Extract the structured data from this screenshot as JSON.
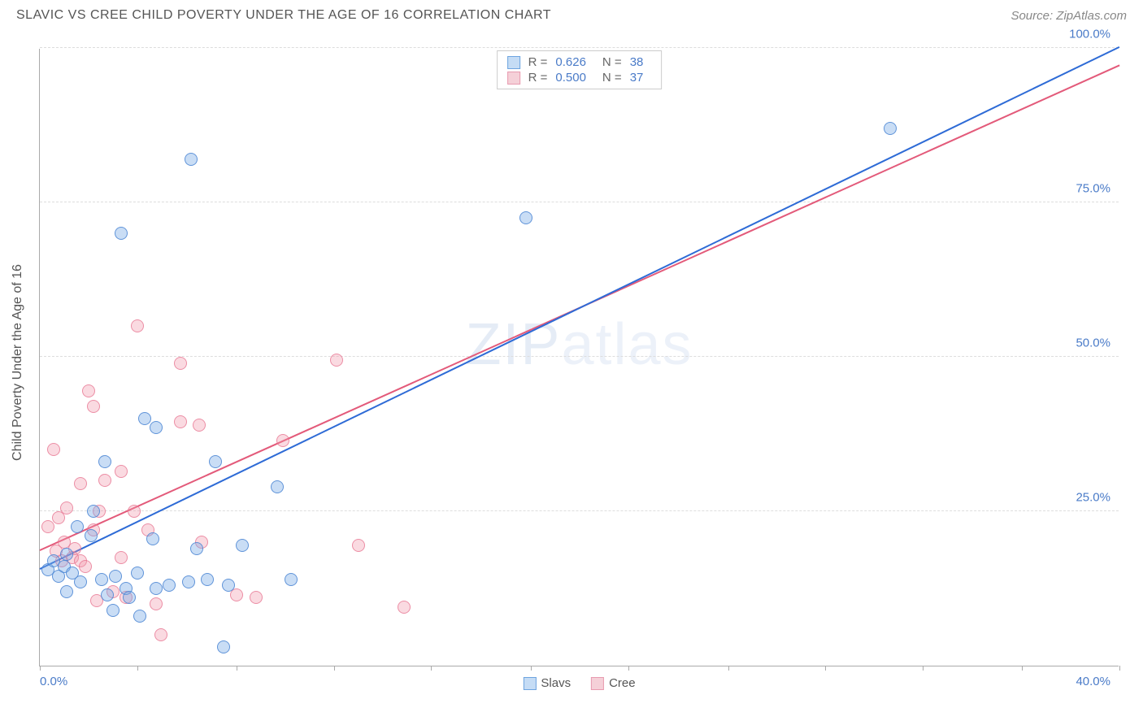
{
  "header": {
    "title": "SLAVIC VS CREE CHILD POVERTY UNDER THE AGE OF 16 CORRELATION CHART",
    "source": "Source: ZipAtlas.com"
  },
  "watermark": {
    "part1": "ZIP",
    "part2": "atlas"
  },
  "chart": {
    "type": "scatter",
    "y_axis_title": "Child Poverty Under the Age of 16",
    "xlim": [
      0,
      40
    ],
    "ylim": [
      0,
      100
    ],
    "x_label_start": "0.0%",
    "x_label_end": "40.0%",
    "y_labels": [
      {
        "value": 25,
        "text": "25.0%"
      },
      {
        "value": 50,
        "text": "50.0%"
      },
      {
        "value": 75,
        "text": "75.0%"
      },
      {
        "value": 100,
        "text": "100.0%"
      }
    ],
    "x_ticks": [
      0,
      3.6,
      7.3,
      10.9,
      14.5,
      18.2,
      21.8,
      25.5,
      29.1,
      32.7,
      36.4,
      40
    ],
    "grid_color": "#dddddd",
    "axis_color": "#aaaaaa",
    "background_color": "#ffffff",
    "series_a": {
      "name": "Slavs",
      "fill": "rgba(120, 170, 230, 0.4)",
      "stroke": "rgba(70, 130, 210, 0.8)",
      "swatch_fill": "#c5dcf5",
      "swatch_border": "#6ea4e0",
      "R": "0.626",
      "N": "38",
      "trend": {
        "x0": 0,
        "y0": 15.5,
        "x1": 40,
        "y1": 100,
        "color": "#2e6bd6",
        "dash_color": "#9ab8e8"
      },
      "points": [
        {
          "x": 0.3,
          "y": 15.5
        },
        {
          "x": 0.5,
          "y": 17.0
        },
        {
          "x": 0.7,
          "y": 14.5
        },
        {
          "x": 0.9,
          "y": 16.0
        },
        {
          "x": 1.0,
          "y": 18.0
        },
        {
          "x": 1.2,
          "y": 15.0
        },
        {
          "x": 1.4,
          "y": 22.5
        },
        {
          "x": 1.5,
          "y": 13.5
        },
        {
          "x": 1.9,
          "y": 21.0
        },
        {
          "x": 1.0,
          "y": 12.0
        },
        {
          "x": 2.3,
          "y": 14.0
        },
        {
          "x": 2.0,
          "y": 25.0
        },
        {
          "x": 2.5,
          "y": 11.5
        },
        {
          "x": 2.8,
          "y": 14.5
        },
        {
          "x": 3.0,
          "y": 70.0
        },
        {
          "x": 2.4,
          "y": 33.0
        },
        {
          "x": 3.2,
          "y": 12.5
        },
        {
          "x": 3.3,
          "y": 11.0
        },
        {
          "x": 3.6,
          "y": 15.0
        },
        {
          "x": 3.7,
          "y": 8.0
        },
        {
          "x": 3.9,
          "y": 40.0
        },
        {
          "x": 4.2,
          "y": 20.5
        },
        {
          "x": 4.3,
          "y": 12.5
        },
        {
          "x": 4.3,
          "y": 38.5
        },
        {
          "x": 4.8,
          "y": 13.0
        },
        {
          "x": 5.5,
          "y": 13.5
        },
        {
          "x": 5.8,
          "y": 19.0
        },
        {
          "x": 5.6,
          "y": 82.0
        },
        {
          "x": 6.2,
          "y": 14.0
        },
        {
          "x": 2.7,
          "y": 9.0
        },
        {
          "x": 6.5,
          "y": 33.0
        },
        {
          "x": 6.8,
          "y": 3.0
        },
        {
          "x": 7.0,
          "y": 13.0
        },
        {
          "x": 7.5,
          "y": 19.5
        },
        {
          "x": 8.8,
          "y": 29.0
        },
        {
          "x": 9.3,
          "y": 14.0
        },
        {
          "x": 18.0,
          "y": 72.5
        },
        {
          "x": 31.5,
          "y": 87.0
        }
      ]
    },
    "series_b": {
      "name": "Cree",
      "fill": "rgba(240, 150, 170, 0.35)",
      "stroke": "rgba(230, 110, 140, 0.7)",
      "swatch_fill": "#f5d0d8",
      "swatch_border": "#e89bb0",
      "R": "0.500",
      "N": "37",
      "trend": {
        "x0": 0,
        "y0": 18.5,
        "x1": 40,
        "y1": 97,
        "color": "#e35a7a",
        "dash_color": "#f5c0cc"
      },
      "points": [
        {
          "x": 0.3,
          "y": 22.5
        },
        {
          "x": 0.5,
          "y": 35.0
        },
        {
          "x": 0.6,
          "y": 18.5
        },
        {
          "x": 0.7,
          "y": 24.0
        },
        {
          "x": 0.8,
          "y": 17.0
        },
        {
          "x": 0.9,
          "y": 20.0
        },
        {
          "x": 1.0,
          "y": 25.5
        },
        {
          "x": 1.2,
          "y": 17.5
        },
        {
          "x": 1.3,
          "y": 19.0
        },
        {
          "x": 1.5,
          "y": 29.5
        },
        {
          "x": 1.5,
          "y": 17.0
        },
        {
          "x": 1.7,
          "y": 16.0
        },
        {
          "x": 1.8,
          "y": 44.5
        },
        {
          "x": 2.0,
          "y": 22.0
        },
        {
          "x": 2.0,
          "y": 42.0
        },
        {
          "x": 2.1,
          "y": 10.5
        },
        {
          "x": 2.2,
          "y": 25.0
        },
        {
          "x": 2.4,
          "y": 30.0
        },
        {
          "x": 2.7,
          "y": 12.0
        },
        {
          "x": 3.0,
          "y": 17.5
        },
        {
          "x": 3.0,
          "y": 31.5
        },
        {
          "x": 3.2,
          "y": 11.0
        },
        {
          "x": 3.5,
          "y": 25.0
        },
        {
          "x": 3.6,
          "y": 55.0
        },
        {
          "x": 4.0,
          "y": 22.0
        },
        {
          "x": 4.3,
          "y": 10.0
        },
        {
          "x": 4.5,
          "y": 5.0
        },
        {
          "x": 5.2,
          "y": 39.5
        },
        {
          "x": 5.2,
          "y": 49.0
        },
        {
          "x": 5.9,
          "y": 39.0
        },
        {
          "x": 6.0,
          "y": 20.0
        },
        {
          "x": 7.3,
          "y": 11.5
        },
        {
          "x": 8.0,
          "y": 11.0
        },
        {
          "x": 9.0,
          "y": 36.5
        },
        {
          "x": 11.0,
          "y": 49.5
        },
        {
          "x": 11.8,
          "y": 19.5
        },
        {
          "x": 13.5,
          "y": 9.5
        }
      ]
    }
  }
}
